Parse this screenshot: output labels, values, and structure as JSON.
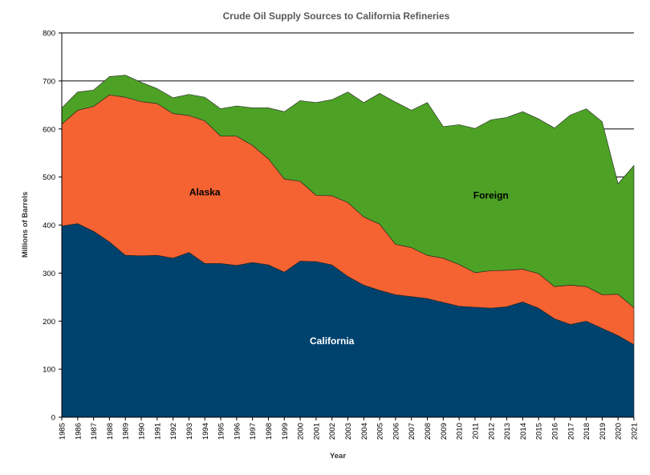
{
  "chart_data": {
    "type": "area",
    "stacked": true,
    "title": "Crude Oil Supply Sources to California Refineries",
    "xlabel": "Year",
    "ylabel": "Millions of Barrels",
    "ylim": [
      0,
      800
    ],
    "yticks": [
      0,
      100,
      200,
      300,
      400,
      500,
      600,
      700,
      800
    ],
    "grid": "horizontal",
    "legend": "none (series labeled inside areas)",
    "x": [
      "1985",
      "1986",
      "1987",
      "1988",
      "1989",
      "1990",
      "1991",
      "1992",
      "1993",
      "1994",
      "1995",
      "1996",
      "1997",
      "1998",
      "1999",
      "2000",
      "2001",
      "2002",
      "2003",
      "2004",
      "2005",
      "2006",
      "2007",
      "2008",
      "2009",
      "2010",
      "2011",
      "2012",
      "2013",
      "2014",
      "2015",
      "2016",
      "2017",
      "2018",
      "2019",
      "2020",
      "2021"
    ],
    "series": [
      {
        "name": "California",
        "color": "#00426E",
        "label_color": "#FFFFFF",
        "values": [
          398,
          403,
          387,
          365,
          337,
          336,
          337,
          331,
          343,
          320,
          320,
          316,
          322,
          317,
          302,
          325,
          324,
          317,
          293,
          275,
          264,
          255,
          251,
          247,
          239,
          231,
          229,
          227,
          230,
          240,
          227,
          205,
          193,
          200,
          185,
          170,
          151
        ]
      },
      {
        "name": "Alaska",
        "color": "#F46331",
        "label_color": "#000000",
        "values": [
          212,
          236,
          260,
          306,
          329,
          321,
          316,
          301,
          285,
          297,
          265,
          269,
          244,
          221,
          194,
          166,
          138,
          144,
          154,
          142,
          138,
          105,
          102,
          90,
          92,
          87,
          72,
          78,
          76,
          68,
          72,
          67,
          82,
          72,
          70,
          86,
          77
        ]
      },
      {
        "name": "Foreign",
        "color": "#4DA225",
        "label_color": "#000000",
        "values": [
          34,
          38,
          34,
          38,
          46,
          40,
          31,
          33,
          44,
          49,
          57,
          63,
          78,
          106,
          140,
          168,
          193,
          200,
          230,
          238,
          272,
          296,
          286,
          318,
          274,
          291,
          300,
          314,
          318,
          328,
          322,
          330,
          354,
          370,
          360,
          230,
          296
        ]
      }
    ]
  }
}
